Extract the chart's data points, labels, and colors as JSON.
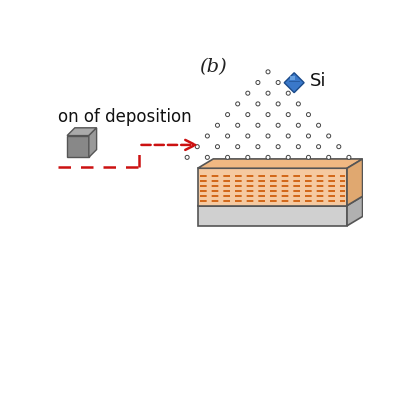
{
  "title_label": "(b)",
  "subtitle": "on of deposition",
  "background_color": "#ffffff",
  "title_fontsize": 14,
  "subtitle_fontsize": 12,
  "arrow_color": "#cc1111",
  "dot_edge_color": "#444444",
  "deposit_fill": "#f5c9a0",
  "deposit_top": "#f0b882",
  "deposit_right": "#e0a870",
  "deposit_edge": "#555555",
  "base_fill": "#d0d0d0",
  "base_top": "#c0c0c0",
  "base_right": "#b0b0b0",
  "base_edge": "#555555",
  "dashes_color": "#cc5500",
  "gem_blue": "#3a78c9",
  "gem_highlight": "#7ab0e8",
  "gem_edge": "#1a4a8a",
  "gem_label": "Si",
  "cube_front": "#888888",
  "cube_top": "#aaaaaa",
  "cube_right": "#999999",
  "cube_edge": "#555555"
}
